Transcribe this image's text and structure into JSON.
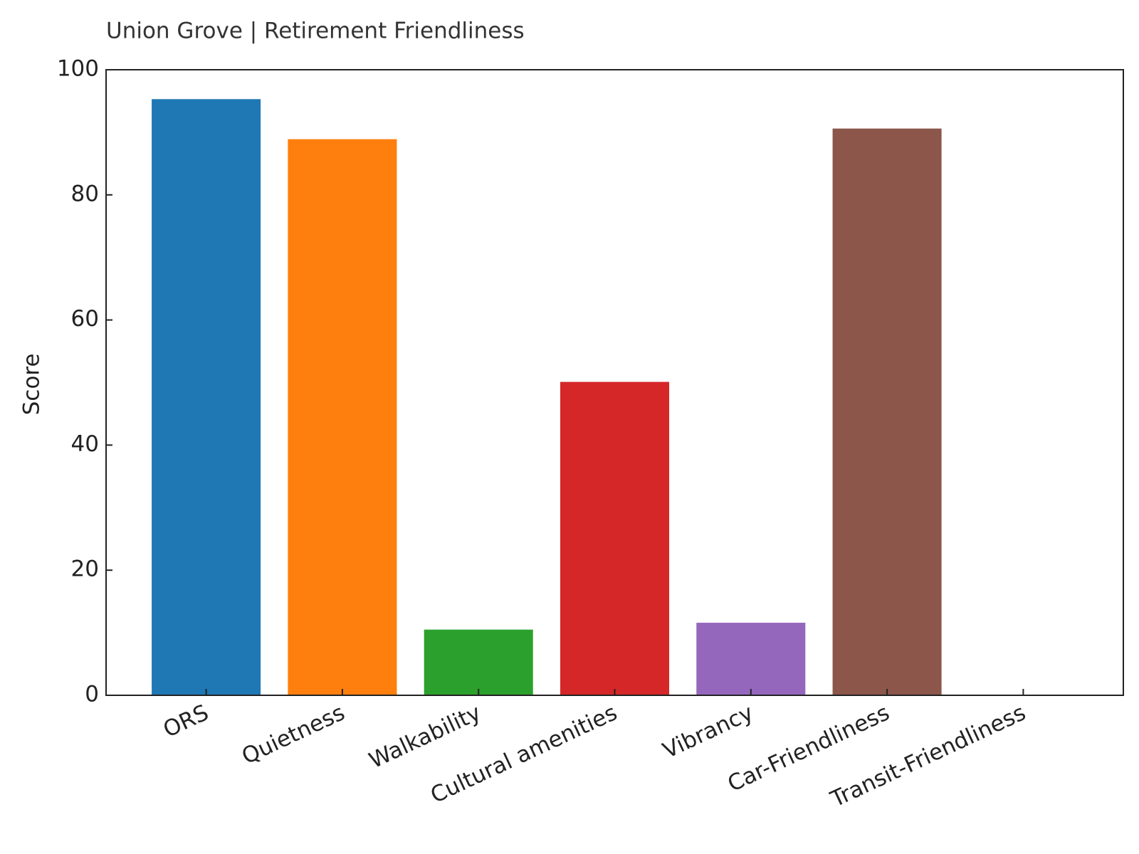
{
  "chart_data": {
    "type": "bar",
    "title": "Union Grove | Retirement Friendliness",
    "y_label": "Score",
    "categories": [
      "ORS",
      "Quietness",
      "Walkability",
      "Cultural amenities",
      "Vibrancy",
      "Car-Friendliness",
      "Transit-Friendliness"
    ],
    "values": [
      95.3,
      88.9,
      10.5,
      50.1,
      11.6,
      90.6,
      0
    ],
    "colors": [
      "#1f77b4",
      "#ff7f0e",
      "#2ca02c",
      "#d62728",
      "#9467bd",
      "#8c564b",
      "#e377c2"
    ],
    "ylim": [
      0,
      100
    ],
    "yticks": [
      0,
      20,
      40,
      60,
      80,
      100
    ],
    "grid": false
  }
}
